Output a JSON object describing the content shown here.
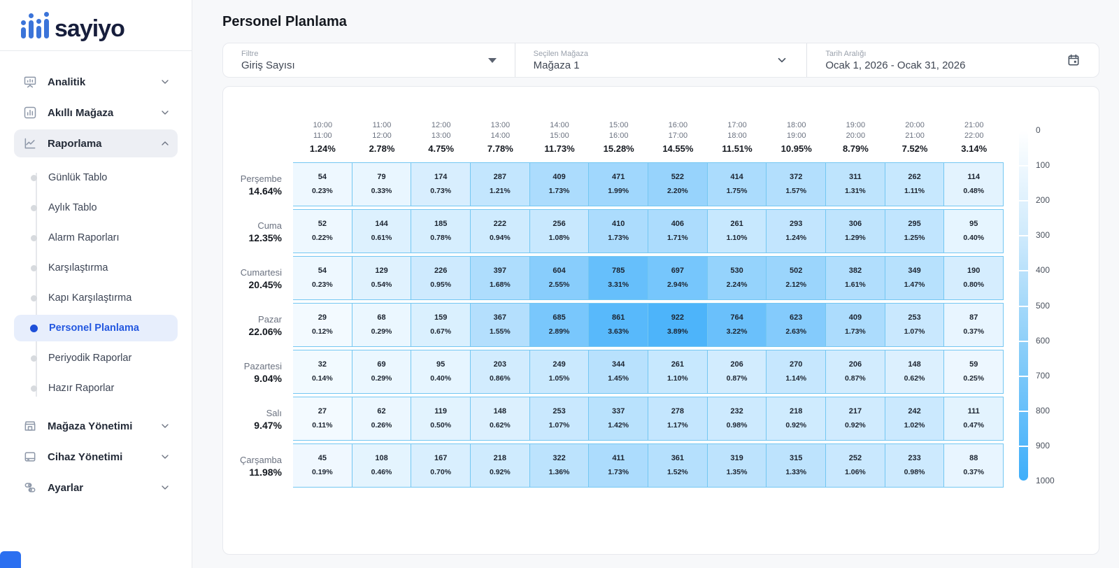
{
  "sidebar": {
    "logo_text": "sayiyo",
    "menu": [
      {
        "label": "Analitik",
        "icon": "presentation-chart-icon",
        "expanded": false
      },
      {
        "label": "Akıllı Mağaza",
        "icon": "bar-chart-icon",
        "expanded": false
      },
      {
        "label": "Raporlama",
        "icon": "line-chart-icon",
        "expanded": true
      }
    ],
    "report_children": [
      {
        "label": "Günlük Tablo",
        "active": false
      },
      {
        "label": "Aylık Tablo",
        "active": false
      },
      {
        "label": "Alarm Raporları",
        "active": false
      },
      {
        "label": "Karşılaştırma",
        "active": false
      },
      {
        "label": "Kapı Karşılaştırma",
        "active": false
      },
      {
        "label": "Personel Planlama",
        "active": true
      },
      {
        "label": "Periyodik Raporlar",
        "active": false
      },
      {
        "label": "Hazır Raporlar",
        "active": false
      }
    ],
    "bottom_menu": [
      {
        "label": "Mağaza Yönetimi",
        "icon": "store-icon"
      },
      {
        "label": "Cihaz Yönetimi",
        "icon": "device-icon"
      },
      {
        "label": "Ayarlar",
        "icon": "sliders-icon"
      }
    ]
  },
  "header": {
    "title": "Personel Planlama"
  },
  "filters": {
    "filter_label": "Filtre",
    "filter_value": "Giriş Sayısı",
    "store_label": "Seçilen Mağaza",
    "store_value": "Mağaza 1",
    "date_label": "Tarih Aralığı",
    "date_value": "Ocak 1, 2026 - Ocak 31, 2026",
    "icons": [
      "dropdown-triangle-icon",
      "chevron-down-icon",
      "calendar-icon"
    ]
  },
  "colors": {
    "accent": "#2458e0",
    "heat_low": "#f8fcff",
    "heat_high": "#3eaefa",
    "cell_border": "#74c7f2"
  },
  "chart_data": {
    "type": "heatmap",
    "title": "Personel Planlama",
    "columns": [
      {
        "start": "10:00",
        "end": "11:00",
        "pct": "1.24%"
      },
      {
        "start": "11:00",
        "end": "12:00",
        "pct": "2.78%"
      },
      {
        "start": "12:00",
        "end": "13:00",
        "pct": "4.75%"
      },
      {
        "start": "13:00",
        "end": "14:00",
        "pct": "7.78%"
      },
      {
        "start": "14:00",
        "end": "15:00",
        "pct": "11.73%"
      },
      {
        "start": "15:00",
        "end": "16:00",
        "pct": "15.28%"
      },
      {
        "start": "16:00",
        "end": "17:00",
        "pct": "14.55%"
      },
      {
        "start": "17:00",
        "end": "18:00",
        "pct": "11.51%"
      },
      {
        "start": "18:00",
        "end": "19:00",
        "pct": "10.95%"
      },
      {
        "start": "19:00",
        "end": "20:00",
        "pct": "8.79%"
      },
      {
        "start": "20:00",
        "end": "21:00",
        "pct": "7.52%"
      },
      {
        "start": "21:00",
        "end": "22:00",
        "pct": "3.14%"
      }
    ],
    "rows": [
      {
        "day": "Perşembe",
        "pct": "14.64%",
        "cells": [
          {
            "count": 54,
            "pct": "0.23%"
          },
          {
            "count": 79,
            "pct": "0.33%"
          },
          {
            "count": 174,
            "pct": "0.73%"
          },
          {
            "count": 287,
            "pct": "1.21%"
          },
          {
            "count": 409,
            "pct": "1.73%"
          },
          {
            "count": 471,
            "pct": "1.99%"
          },
          {
            "count": 522,
            "pct": "2.20%"
          },
          {
            "count": 414,
            "pct": "1.75%"
          },
          {
            "count": 372,
            "pct": "1.57%"
          },
          {
            "count": 311,
            "pct": "1.31%"
          },
          {
            "count": 262,
            "pct": "1.11%"
          },
          {
            "count": 114,
            "pct": "0.48%"
          }
        ]
      },
      {
        "day": "Cuma",
        "pct": "12.35%",
        "cells": [
          {
            "count": 52,
            "pct": "0.22%"
          },
          {
            "count": 144,
            "pct": "0.61%"
          },
          {
            "count": 185,
            "pct": "0.78%"
          },
          {
            "count": 222,
            "pct": "0.94%"
          },
          {
            "count": 256,
            "pct": "1.08%"
          },
          {
            "count": 410,
            "pct": "1.73%"
          },
          {
            "count": 406,
            "pct": "1.71%"
          },
          {
            "count": 261,
            "pct": "1.10%"
          },
          {
            "count": 293,
            "pct": "1.24%"
          },
          {
            "count": 306,
            "pct": "1.29%"
          },
          {
            "count": 295,
            "pct": "1.25%"
          },
          {
            "count": 95,
            "pct": "0.40%"
          }
        ]
      },
      {
        "day": "Cumartesi",
        "pct": "20.45%",
        "cells": [
          {
            "count": 54,
            "pct": "0.23%"
          },
          {
            "count": 129,
            "pct": "0.54%"
          },
          {
            "count": 226,
            "pct": "0.95%"
          },
          {
            "count": 397,
            "pct": "1.68%"
          },
          {
            "count": 604,
            "pct": "2.55%"
          },
          {
            "count": 785,
            "pct": "3.31%"
          },
          {
            "count": 697,
            "pct": "2.94%"
          },
          {
            "count": 530,
            "pct": "2.24%"
          },
          {
            "count": 502,
            "pct": "2.12%"
          },
          {
            "count": 382,
            "pct": "1.61%"
          },
          {
            "count": 349,
            "pct": "1.47%"
          },
          {
            "count": 190,
            "pct": "0.80%"
          }
        ]
      },
      {
        "day": "Pazar",
        "pct": "22.06%",
        "cells": [
          {
            "count": 29,
            "pct": "0.12%"
          },
          {
            "count": 68,
            "pct": "0.29%"
          },
          {
            "count": 159,
            "pct": "0.67%"
          },
          {
            "count": 367,
            "pct": "1.55%"
          },
          {
            "count": 685,
            "pct": "2.89%"
          },
          {
            "count": 861,
            "pct": "3.63%"
          },
          {
            "count": 922,
            "pct": "3.89%"
          },
          {
            "count": 764,
            "pct": "3.22%"
          },
          {
            "count": 623,
            "pct": "2.63%"
          },
          {
            "count": 409,
            "pct": "1.73%"
          },
          {
            "count": 253,
            "pct": "1.07%"
          },
          {
            "count": 87,
            "pct": "0.37%"
          }
        ]
      },
      {
        "day": "Pazartesi",
        "pct": "9.04%",
        "cells": [
          {
            "count": 32,
            "pct": "0.14%"
          },
          {
            "count": 69,
            "pct": "0.29%"
          },
          {
            "count": 95,
            "pct": "0.40%"
          },
          {
            "count": 203,
            "pct": "0.86%"
          },
          {
            "count": 249,
            "pct": "1.05%"
          },
          {
            "count": 344,
            "pct": "1.45%"
          },
          {
            "count": 261,
            "pct": "1.10%"
          },
          {
            "count": 206,
            "pct": "0.87%"
          },
          {
            "count": 270,
            "pct": "1.14%"
          },
          {
            "count": 206,
            "pct": "0.87%"
          },
          {
            "count": 148,
            "pct": "0.62%"
          },
          {
            "count": 59,
            "pct": "0.25%"
          }
        ]
      },
      {
        "day": "Salı",
        "pct": "9.47%",
        "cells": [
          {
            "count": 27,
            "pct": "0.11%"
          },
          {
            "count": 62,
            "pct": "0.26%"
          },
          {
            "count": 119,
            "pct": "0.50%"
          },
          {
            "count": 148,
            "pct": "0.62%"
          },
          {
            "count": 253,
            "pct": "1.07%"
          },
          {
            "count": 337,
            "pct": "1.42%"
          },
          {
            "count": 278,
            "pct": "1.17%"
          },
          {
            "count": 232,
            "pct": "0.98%"
          },
          {
            "count": 218,
            "pct": "0.92%"
          },
          {
            "count": 217,
            "pct": "0.92%"
          },
          {
            "count": 242,
            "pct": "1.02%"
          },
          {
            "count": 111,
            "pct": "0.47%"
          }
        ]
      },
      {
        "day": "Çarşamba",
        "pct": "11.98%",
        "cells": [
          {
            "count": 45,
            "pct": "0.19%"
          },
          {
            "count": 108,
            "pct": "0.46%"
          },
          {
            "count": 167,
            "pct": "0.70%"
          },
          {
            "count": 218,
            "pct": "0.92%"
          },
          {
            "count": 322,
            "pct": "1.36%"
          },
          {
            "count": 411,
            "pct": "1.73%"
          },
          {
            "count": 361,
            "pct": "1.52%"
          },
          {
            "count": 319,
            "pct": "1.35%"
          },
          {
            "count": 315,
            "pct": "1.33%"
          },
          {
            "count": 252,
            "pct": "1.06%"
          },
          {
            "count": 233,
            "pct": "0.98%"
          },
          {
            "count": 88,
            "pct": "0.37%"
          }
        ]
      }
    ],
    "legend": {
      "min": 0,
      "max": 1000,
      "ticks": [
        0,
        100,
        200,
        300,
        400,
        500,
        600,
        700,
        800,
        900,
        1000
      ],
      "position": "right"
    }
  }
}
